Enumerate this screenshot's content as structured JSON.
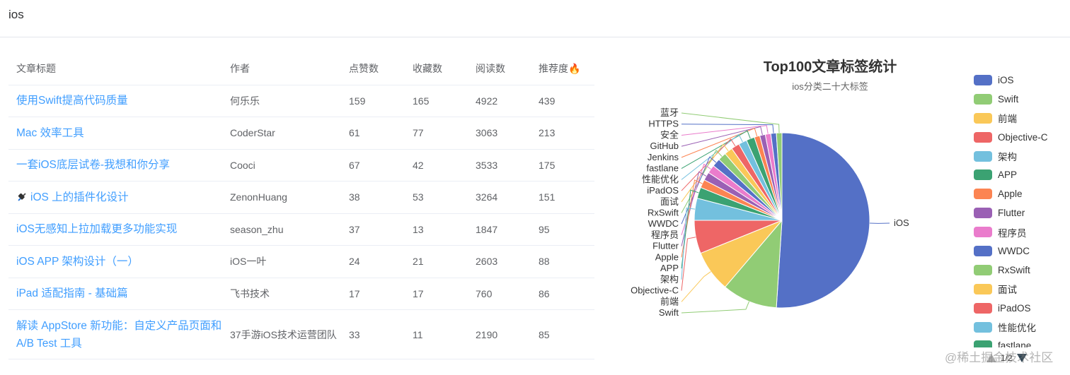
{
  "header": {
    "title": "ios"
  },
  "table": {
    "columns": [
      "文章标题",
      "作者",
      "点赞数",
      "收藏数",
      "阅读数",
      "推荐度🔥"
    ],
    "rows": [
      {
        "title": "使用Swift提高代码质量",
        "author": "何乐乐",
        "likes": "159",
        "collects": "165",
        "views": "4922",
        "score": "439"
      },
      {
        "title": "Mac 效率工具",
        "author": "CoderStar",
        "likes": "61",
        "collects": "77",
        "views": "3063",
        "score": "213"
      },
      {
        "title": "一套iOS底层试卷-我想和你分享",
        "author": "Cooci",
        "likes": "67",
        "collects": "42",
        "views": "3533",
        "score": "175"
      },
      {
        "title": "iOS 上的插件化设计",
        "author": "ZenonHuang",
        "likes": "38",
        "collects": "53",
        "views": "3264",
        "score": "151"
      },
      {
        "title": "iOS无感知上拉加载更多功能实现",
        "author": "season_zhu",
        "likes": "37",
        "collects": "13",
        "views": "1847",
        "score": "95"
      },
      {
        "title": "iOS APP 架构设计（一）",
        "author": "iOS一叶",
        "likes": "24",
        "collects": "21",
        "views": "2603",
        "score": "88"
      },
      {
        "title": "iPad 适配指南 - 基础篇",
        "author": "飞书技术",
        "likes": "17",
        "collects": "17",
        "views": "760",
        "score": "86"
      },
      {
        "title": "解读 AppStore 新功能：自定义产品页面和 A/B Test 工具",
        "author": "37手游iOS技术运营团队",
        "likes": "33",
        "collects": "11",
        "views": "2190",
        "score": "85"
      }
    ]
  },
  "chart_data": {
    "type": "pie",
    "title": "Top100文章标签统计",
    "subtitle": "ios分类二十大标签",
    "legend_position": "right",
    "categories": [
      "iOS",
      "Swift",
      "前端",
      "Objective-C",
      "架构",
      "APP",
      "Apple",
      "Flutter",
      "程序员",
      "WWDC",
      "RxSwift",
      "面试",
      "iPadOS",
      "性能优化",
      "fastlane",
      "Jenkins",
      "GitHub",
      "安全",
      "HTTPS",
      "蓝牙"
    ],
    "values": [
      100,
      20,
      15,
      12,
      8,
      4,
      3,
      3,
      3,
      3,
      3,
      3,
      3,
      3,
      3,
      2,
      2,
      2,
      2,
      2
    ],
    "colors": [
      "#5470c6",
      "#91cc75",
      "#fac858",
      "#ee6666",
      "#73c0de",
      "#3ba272",
      "#fc8452",
      "#9a60b4",
      "#ea7ccc",
      "#5470c6",
      "#91cc75",
      "#fac858",
      "#ee6666",
      "#73c0de",
      "#3ba272",
      "#fc8452",
      "#9a60b4",
      "#ea7ccc",
      "#5470c6",
      "#91cc75"
    ]
  },
  "legend": {
    "visible_items": [
      "iOS",
      "Swift",
      "前端",
      "Objective-C",
      "架构",
      "APP",
      "Apple",
      "Flutter",
      "程序员",
      "WWDC",
      "RxSwift",
      "面试",
      "iPadOS",
      "性能优化",
      "fastlane"
    ],
    "page_indicator": "1/2"
  },
  "watermark": "@稀土掘金技术社区"
}
